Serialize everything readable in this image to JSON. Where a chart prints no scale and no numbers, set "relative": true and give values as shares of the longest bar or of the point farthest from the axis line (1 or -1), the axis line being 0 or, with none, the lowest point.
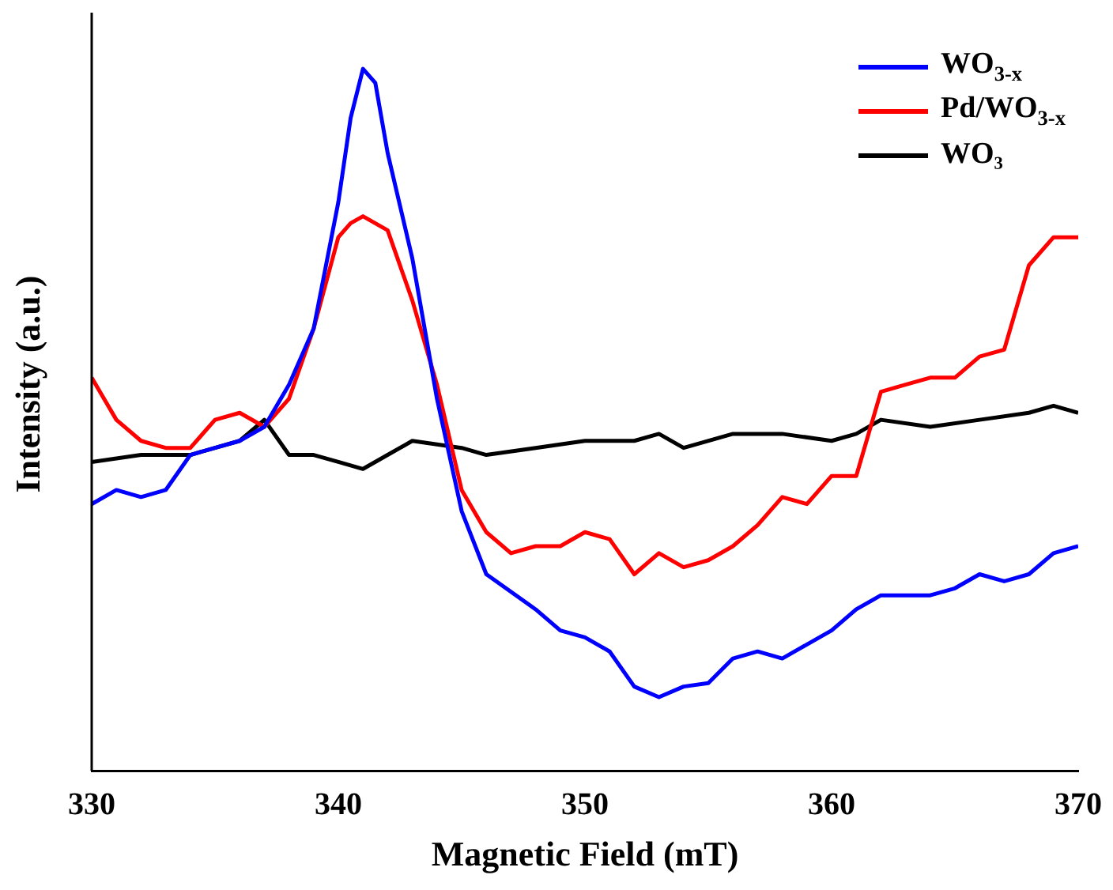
{
  "chart_data": {
    "type": "line",
    "xlabel": "Magnetic Field (mT)",
    "ylabel": "Intensity (a.u.)",
    "relative": true,
    "xlim": [
      330,
      370
    ],
    "xticks": [
      330,
      340,
      350,
      360,
      370
    ],
    "grid": false,
    "legend": "top right",
    "marker": "none",
    "line_style": "solid",
    "series": [
      {
        "name": "WO$_{3-x}$",
        "color": "#0000ff",
        "x": [
          330,
          331,
          332,
          333,
          334,
          335,
          336,
          337,
          338,
          339,
          340,
          340.5,
          341,
          341.5,
          342,
          343,
          344,
          345,
          346,
          348,
          349,
          350,
          351,
          352,
          353,
          354,
          355,
          356,
          357,
          358,
          359,
          360,
          361,
          362,
          363,
          364,
          365,
          366,
          367,
          368,
          369,
          370
        ],
        "values": [
          0.38,
          0.4,
          0.39,
          0.4,
          0.45,
          0.46,
          0.47,
          0.49,
          0.55,
          0.63,
          0.81,
          0.93,
          1.0,
          0.98,
          0.88,
          0.73,
          0.53,
          0.37,
          0.28,
          0.23,
          0.2,
          0.19,
          0.17,
          0.12,
          0.105,
          0.12,
          0.125,
          0.16,
          0.17,
          0.16,
          0.18,
          0.2,
          0.23,
          0.25,
          0.25,
          0.25,
          0.26,
          0.28,
          0.27,
          0.28,
          0.31,
          0.32
        ]
      },
      {
        "name": "Pd/WO$_{3-x}$",
        "color": "#ff0000",
        "x": [
          330,
          331,
          332,
          333,
          334,
          335,
          336,
          337,
          338,
          339,
          340,
          340.5,
          341,
          342,
          343,
          344,
          345,
          346,
          347,
          348,
          349,
          350,
          351,
          352,
          353,
          354,
          355,
          356,
          357,
          358,
          359,
          360,
          361,
          362,
          363,
          364,
          365,
          366,
          367,
          368,
          369,
          370
        ],
        "values": [
          0.56,
          0.5,
          0.47,
          0.46,
          0.46,
          0.5,
          0.51,
          0.49,
          0.53,
          0.63,
          0.76,
          0.78,
          0.79,
          0.77,
          0.67,
          0.55,
          0.4,
          0.34,
          0.31,
          0.32,
          0.32,
          0.34,
          0.33,
          0.28,
          0.31,
          0.29,
          0.3,
          0.32,
          0.35,
          0.39,
          0.38,
          0.42,
          0.42,
          0.54,
          0.55,
          0.56,
          0.56,
          0.59,
          0.6,
          0.72,
          0.76,
          0.76
        ]
      },
      {
        "name": "WO₃",
        "color": "#000000",
        "x": [
          330,
          332,
          334,
          336,
          337,
          338,
          339,
          340,
          341,
          342,
          343,
          345,
          346,
          348,
          350,
          352,
          353,
          354,
          356,
          358,
          360,
          361,
          362,
          364,
          366,
          368,
          369,
          370
        ],
        "values": [
          0.44,
          0.45,
          0.45,
          0.47,
          0.5,
          0.45,
          0.45,
          0.44,
          0.43,
          0.45,
          0.47,
          0.46,
          0.45,
          0.46,
          0.47,
          0.47,
          0.48,
          0.46,
          0.48,
          0.48,
          0.47,
          0.48,
          0.5,
          0.49,
          0.5,
          0.51,
          0.52,
          0.51
        ]
      }
    ]
  }
}
